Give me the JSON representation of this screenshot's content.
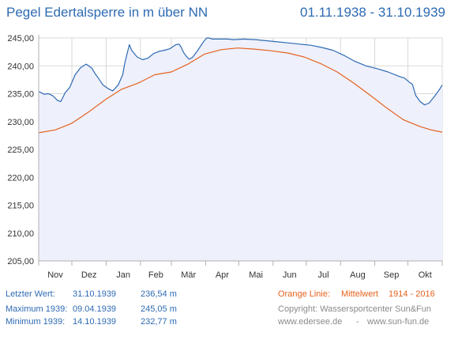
{
  "title": "Pegel Edertalsperre in m über NN",
  "period": "01.11.1938 - 31.10.1939",
  "colors": {
    "level": "#2e6ab3",
    "mean": "#e5621e",
    "fill": "#eef0fb",
    "grid": "#d9d9d9",
    "axis": "#b0b0b0",
    "text": "#333333"
  },
  "chart_data": {
    "type": "line",
    "ylim": [
      205,
      245
    ],
    "yticks": [
      "205,00",
      "210,00",
      "215,00",
      "220,00",
      "225,00",
      "230,00",
      "235,00",
      "240,00",
      "245,00"
    ],
    "ytick_values": [
      205,
      210,
      215,
      220,
      225,
      230,
      235,
      240,
      245
    ],
    "months": [
      "Nov",
      "Dez",
      "Jan",
      "Feb",
      "Mär",
      "Apr",
      "Mai",
      "Jun",
      "Jul",
      "Aug",
      "Sep",
      "Okt"
    ],
    "xlim": [
      0,
      365
    ],
    "grid": true,
    "series": [
      {
        "color": "#2e6ab3",
        "fill": true,
        "x": [
          0,
          5,
          9,
          13,
          17,
          20,
          24,
          28,
          33,
          38,
          43,
          48,
          51,
          54,
          58,
          63,
          67,
          72,
          76,
          78,
          82,
          84,
          89,
          94,
          99,
          104,
          109,
          114,
          119,
          124,
          127,
          129,
          131,
          134,
          136,
          139,
          144,
          149,
          152,
          154,
          157,
          160,
          166,
          171,
          176,
          186,
          196,
          206,
          216,
          226,
          236,
          246,
          256,
          266,
          276,
          286,
          296,
          306,
          316,
          326,
          331,
          335,
          338,
          341,
          345,
          349,
          353,
          358,
          362,
          365
        ],
        "y": [
          235.4,
          234.9,
          235.0,
          234.6,
          233.8,
          233.6,
          235.2,
          236.1,
          238.4,
          239.7,
          240.3,
          239.6,
          238.6,
          237.8,
          236.6,
          235.9,
          235.5,
          236.6,
          238.4,
          240.6,
          243.8,
          242.8,
          241.6,
          241.1,
          241.4,
          242.2,
          242.6,
          242.8,
          243.1,
          243.8,
          243.9,
          243.3,
          242.4,
          241.6,
          241.2,
          241.5,
          242.8,
          244.3,
          245.0,
          245.0,
          244.8,
          244.8,
          244.8,
          244.8,
          244.7,
          244.8,
          244.7,
          244.5,
          244.3,
          244.1,
          243.9,
          243.7,
          243.3,
          242.8,
          241.9,
          240.8,
          240.0,
          239.5,
          238.9,
          238.1,
          237.8,
          237.1,
          236.7,
          234.7,
          233.6,
          233.0,
          233.3,
          234.5,
          235.6,
          236.54
        ]
      },
      {
        "color": "#e5621e",
        "fill": false,
        "x": [
          0,
          15,
          30,
          45,
          60,
          75,
          90,
          105,
          120,
          135,
          150,
          165,
          180,
          195,
          210,
          225,
          240,
          255,
          270,
          285,
          300,
          315,
          330,
          345,
          355,
          365
        ],
        "y": [
          228.0,
          228.5,
          229.7,
          231.7,
          233.9,
          235.8,
          236.9,
          238.4,
          238.9,
          240.3,
          242.1,
          242.9,
          243.2,
          243.0,
          242.7,
          242.3,
          241.6,
          240.4,
          238.9,
          236.9,
          234.7,
          232.4,
          230.3,
          229.1,
          228.5,
          228.1
        ]
      }
    ]
  },
  "footer": {
    "last_label": "Letzter Wert:",
    "last_date": "31.10.1939",
    "last_value": "236,54 m",
    "max_label": "Maximum 1939:",
    "max_date": "09.04.1939",
    "max_value": "245,05 m",
    "min_label": "Minimum 1939:",
    "min_date": "14.10.1939",
    "min_value": "232,77 m",
    "legend_orange": "Orange Linie:",
    "legend_mean": "Mittelwert",
    "legend_years": "1914 - 2016",
    "copyright": "Copyright: Wassersportcenter Sun&Fun",
    "site1": "www.edersee.de",
    "site_sep": "-",
    "site2": "www.sun-fun.de"
  }
}
